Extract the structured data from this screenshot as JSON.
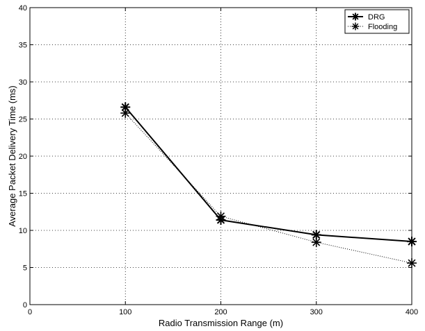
{
  "chart_data": {
    "type": "line",
    "xlabel": "Radio Transmission Range (m)",
    "ylabel": "Average Packet Delivery Time (ms)",
    "xlim": [
      0,
      400
    ],
    "ylim": [
      0,
      40
    ],
    "xticks": [
      0,
      100,
      200,
      300,
      400
    ],
    "yticks": [
      0,
      5,
      10,
      15,
      20,
      25,
      30,
      35,
      40
    ],
    "grid": true,
    "legend_position": "top-right",
    "series": [
      {
        "name": "DRG",
        "x": [
          100,
          200,
          300,
          400
        ],
        "values": [
          26.6,
          11.4,
          9.4,
          8.5
        ],
        "line_style": "solid",
        "marker": "asterisk",
        "color": "#000000"
      },
      {
        "name": "Flooding",
        "x": [
          100,
          200,
          300,
          400
        ],
        "values": [
          25.8,
          11.9,
          8.4,
          5.6
        ],
        "line_style": "dotted",
        "marker": "asterisk",
        "color": "#000000"
      }
    ]
  }
}
